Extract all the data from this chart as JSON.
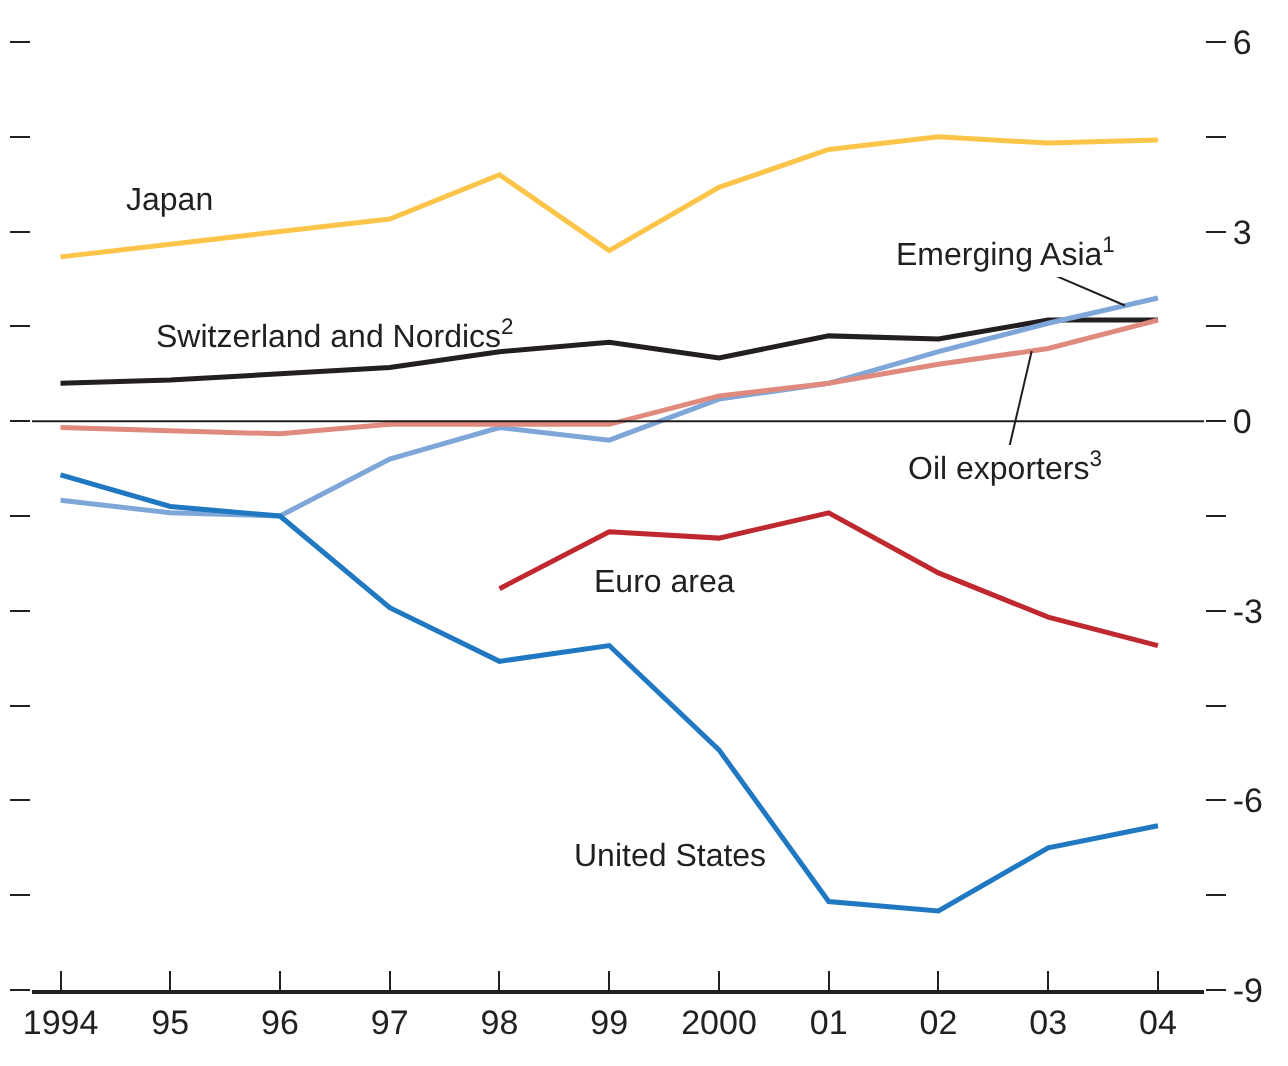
{
  "chart_data": {
    "type": "line",
    "x": [
      1994,
      1995,
      1996,
      1997,
      1998,
      1999,
      2000,
      2001,
      2002,
      2003,
      2004
    ],
    "xlim": [
      1993.74,
      2004.42
    ],
    "xticks": [
      1994,
      {
        "value": 1995,
        "label": "95"
      },
      {
        "value": 1996,
        "label": "96"
      },
      {
        "value": 1997,
        "label": "97"
      },
      {
        "value": 1998,
        "label": "98"
      },
      {
        "value": 1999,
        "label": "99"
      },
      2000,
      {
        "value": 2001,
        "label": "01"
      },
      {
        "value": 2002,
        "label": "02"
      },
      {
        "value": 2003,
        "label": "03"
      },
      {
        "value": 2004,
        "label": "04"
      }
    ],
    "ylim": [
      -9,
      6
    ],
    "yticks": [
      -9,
      {
        "value": -7.5,
        "label": null
      },
      -6,
      {
        "value": -4.5,
        "label": null
      },
      -3,
      {
        "value": -1.5,
        "label": null
      },
      0,
      {
        "value": 1.5,
        "label": null
      },
      3,
      {
        "value": 4.5,
        "label": null
      },
      6
    ],
    "legend": false,
    "line_style": "solid",
    "marker": "none",
    "ref_lines": [
      {
        "axis": "y",
        "value": 0,
        "color": "#231f20"
      }
    ],
    "series": [
      {
        "name": "Japan",
        "color": "#fcc54a",
        "values": [
          2.6,
          2.8,
          3.0,
          3.2,
          3.9,
          2.7,
          3.7,
          4.3,
          4.5,
          4.4,
          4.45
        ]
      },
      {
        "name": "Switzerland and Nordics$^{2}$",
        "color": "#231f20",
        "values": [
          0.6,
          0.65,
          0.75,
          0.85,
          1.1,
          1.25,
          1.0,
          1.35,
          1.3,
          1.6,
          1.6
        ]
      },
      {
        "name": "Emerging Asia$^{1}$",
        "color": "#7ea6d8",
        "values": [
          -1.25,
          -1.45,
          -1.5,
          -0.6,
          -0.1,
          -0.3,
          0.35,
          0.6,
          1.1,
          1.55,
          1.95
        ]
      },
      {
        "name": "Oil exporters$^{3}$",
        "color": "#e08a7e",
        "values": [
          -0.1,
          -0.15,
          -0.2,
          -0.05,
          -0.05,
          -0.05,
          0.4,
          0.6,
          0.9,
          1.15,
          1.6
        ]
      },
      {
        "name": "United States",
        "color": "#1f78c1",
        "values": [
          -0.85,
          -1.35,
          -1.5,
          -2.95,
          -3.8,
          -3.55,
          -5.2,
          -7.6,
          -7.75,
          -6.75,
          -6.4
        ]
      },
      {
        "name": "Euro area",
        "color": "#c0282f",
        "values": [
          null,
          null,
          null,
          null,
          -2.65,
          -1.75,
          -1.85,
          -1.45,
          -2.4,
          -3.1,
          -3.55
        ]
      }
    ]
  }
}
